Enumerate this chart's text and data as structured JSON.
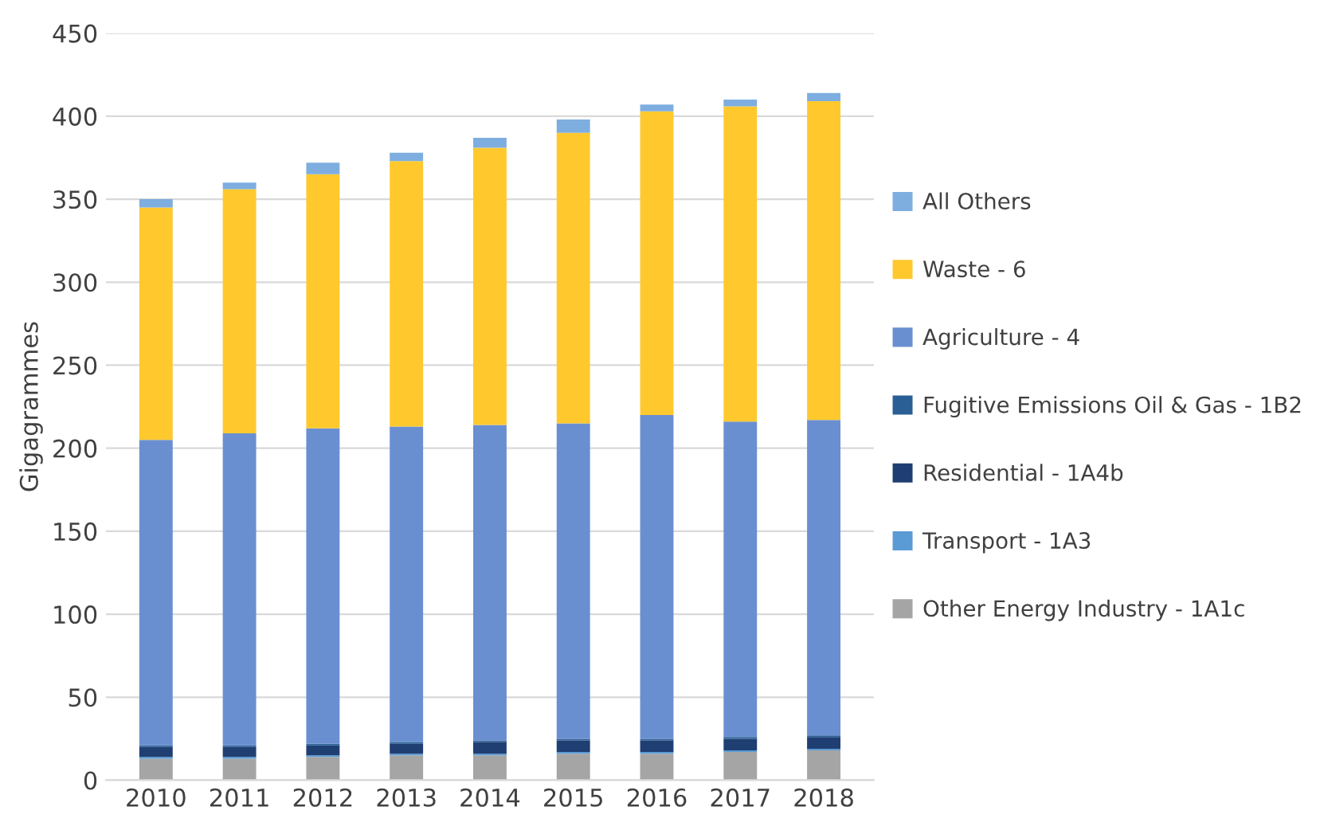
{
  "chart_data": {
    "type": "bar",
    "stacked": true,
    "ylabel": "Gigagrammes",
    "categories": [
      "2010",
      "2011",
      "2012",
      "2013",
      "2014",
      "2015",
      "2016",
      "2017",
      "2018"
    ],
    "series": [
      {
        "name": "Other Energy Industry - 1A1c",
        "color": "#a5a5a5",
        "values": [
          13,
          13,
          14,
          15,
          15,
          16,
          16,
          17,
          18
        ]
      },
      {
        "name": "Transport - 1A3",
        "color": "#5b9bd5",
        "values": [
          1,
          1,
          1,
          1,
          1,
          1,
          1,
          1,
          1
        ]
      },
      {
        "name": "Residential - 1A4b",
        "color": "#1f3f73",
        "values": [
          6,
          6,
          6,
          6,
          7,
          7,
          7,
          7,
          7
        ]
      },
      {
        "name": "Fugitive Emissions Oil & Gas - 1B2",
        "color": "#2a5f96",
        "values": [
          1,
          1,
          1,
          1,
          1,
          1,
          1,
          1,
          1
        ]
      },
      {
        "name": "Agriculture - 4",
        "color": "#6a8fd1",
        "values": [
          184,
          188,
          190,
          190,
          190,
          190,
          195,
          190,
          190
        ]
      },
      {
        "name": "Waste - 6",
        "color": "#ffc92e",
        "values": [
          140,
          147,
          153,
          160,
          167,
          175,
          183,
          190,
          192
        ]
      },
      {
        "name": "All Others",
        "color": "#7eaee0",
        "values": [
          5,
          4,
          7,
          5,
          6,
          8,
          4,
          4,
          5
        ]
      }
    ],
    "ylim": [
      0,
      450
    ],
    "yticks": [
      0,
      50,
      100,
      150,
      200,
      250,
      300,
      350,
      400,
      450
    ],
    "grid": "y",
    "legend": "right"
  }
}
